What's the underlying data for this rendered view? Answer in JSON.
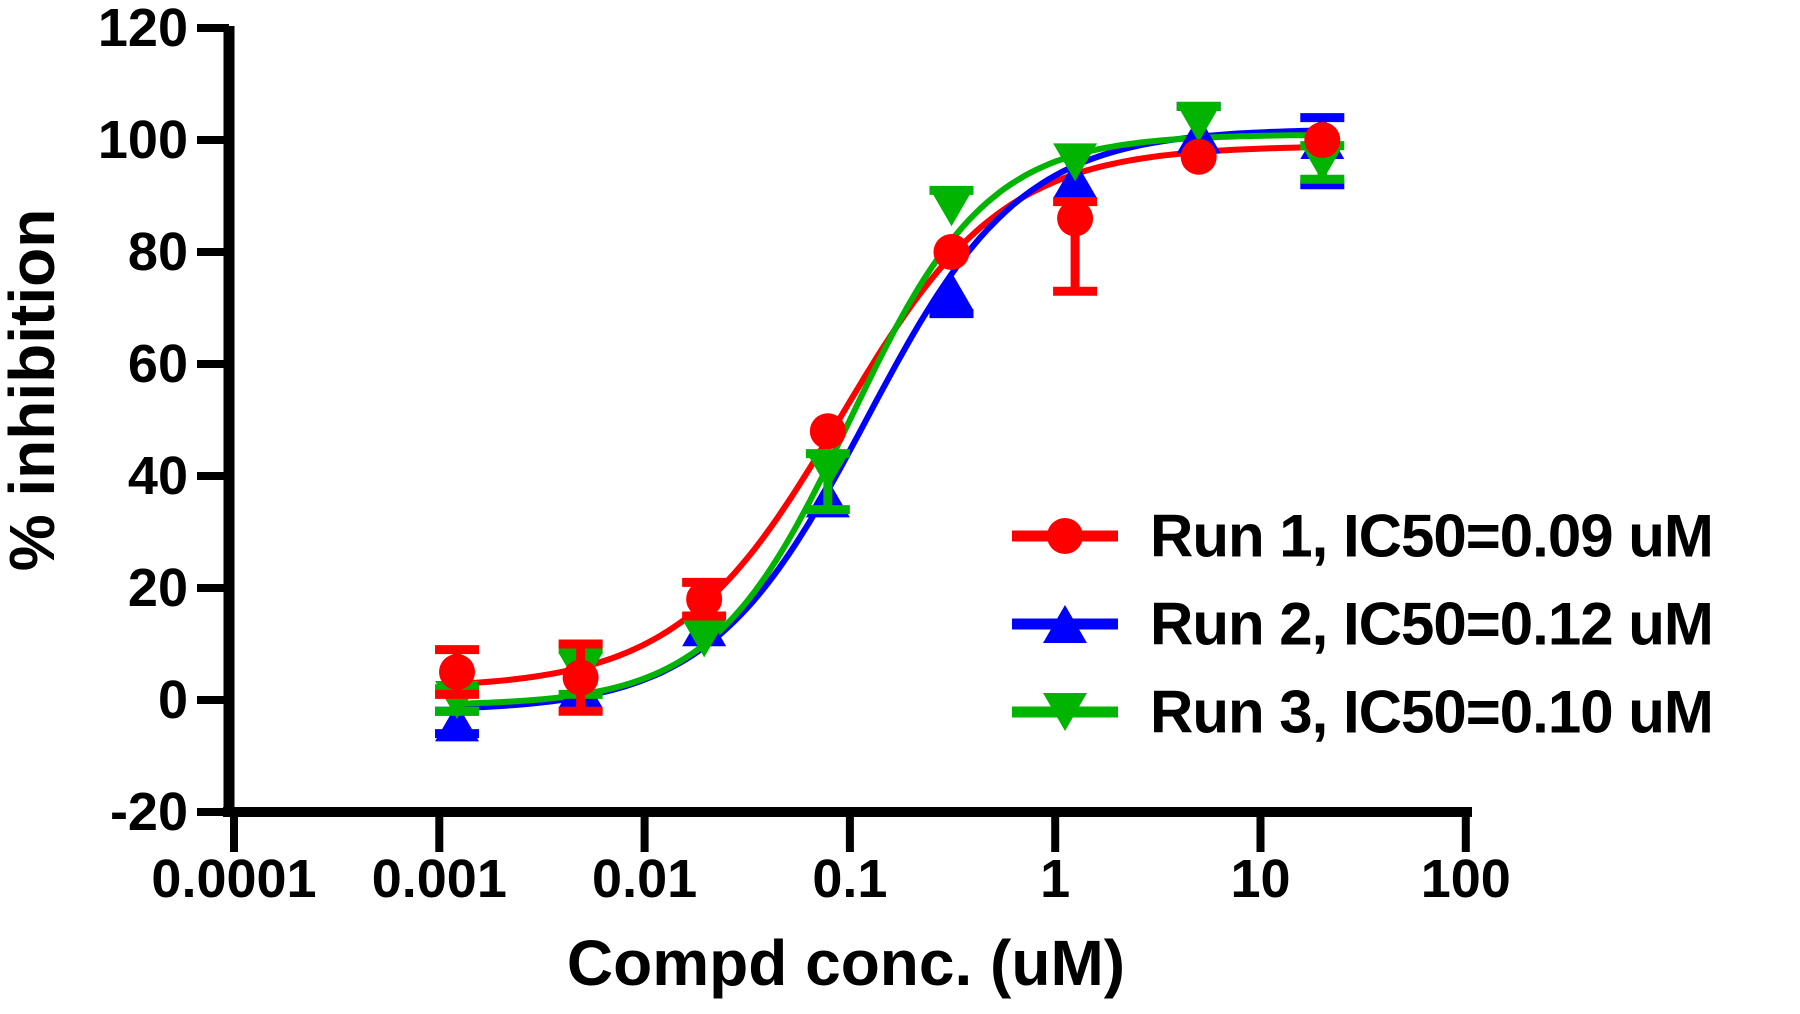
{
  "chart_data": {
    "type": "scatter",
    "title": "",
    "xlabel": "Compd conc. (uM)",
    "ylabel": "% inhibition",
    "x_scale": "log",
    "grid": false,
    "legend_position": "right-middle",
    "xlim_log10": [
      -4,
      2
    ],
    "ylim": [
      -20,
      120
    ],
    "x_ticks": [
      0.0001,
      0.001,
      0.01,
      0.1,
      1,
      10,
      100
    ],
    "x_tick_labels": [
      "0.0001",
      "0.001",
      "0.01",
      "0.1",
      "1",
      "10",
      "100"
    ],
    "y_ticks": [
      -20,
      0,
      20,
      40,
      60,
      80,
      100,
      120
    ],
    "y_tick_labels": [
      "-20",
      "0",
      "20",
      "40",
      "60",
      "80",
      "100",
      "120"
    ],
    "x": [
      0.00122,
      0.00488,
      0.0195,
      0.0781,
      0.3125,
      1.25,
      5,
      20
    ],
    "series": [
      {
        "name": "Run 1, IC50=0.09 uM",
        "color": "#ff0000",
        "marker": "circle",
        "values": [
          5,
          4,
          18,
          48,
          80,
          86,
          97,
          100
        ],
        "err_low": [
          4,
          6,
          3,
          0,
          0,
          13,
          0,
          0
        ],
        "err_high": [
          4,
          6,
          3,
          0,
          0,
          3,
          0,
          0
        ],
        "fit": {
          "bottom": 2,
          "top": 99,
          "ic50": 0.09,
          "hill": 1.1
        }
      },
      {
        "name": "Run 2, IC50=0.12 uM",
        "color": "#0000ff",
        "marker": "triangle-up",
        "values": [
          -4,
          2,
          13,
          36,
          73,
          93,
          101,
          100
        ],
        "err_low": [
          2,
          0,
          0,
          0,
          4,
          0,
          0,
          8
        ],
        "err_high": [
          2,
          0,
          0,
          0,
          0,
          0,
          5,
          4
        ],
        "fit": {
          "bottom": -2,
          "top": 102,
          "ic50": 0.12,
          "hill": 1.15
        }
      },
      {
        "name": "Run 3, IC50=0.10 uM",
        "color": "#00b400",
        "marker": "triangle-down",
        "values": [
          0,
          5,
          11,
          41,
          88,
          96,
          103,
          96
        ],
        "err_low": [
          2,
          4,
          0,
          7,
          0,
          0,
          0,
          3
        ],
        "err_high": [
          2,
          4,
          0,
          3,
          3,
          0,
          3,
          3
        ],
        "fit": {
          "bottom": -1,
          "top": 101,
          "ic50": 0.1,
          "hill": 1.3
        }
      }
    ],
    "curve_x_range": [
      0.00115,
      20.5
    ]
  }
}
